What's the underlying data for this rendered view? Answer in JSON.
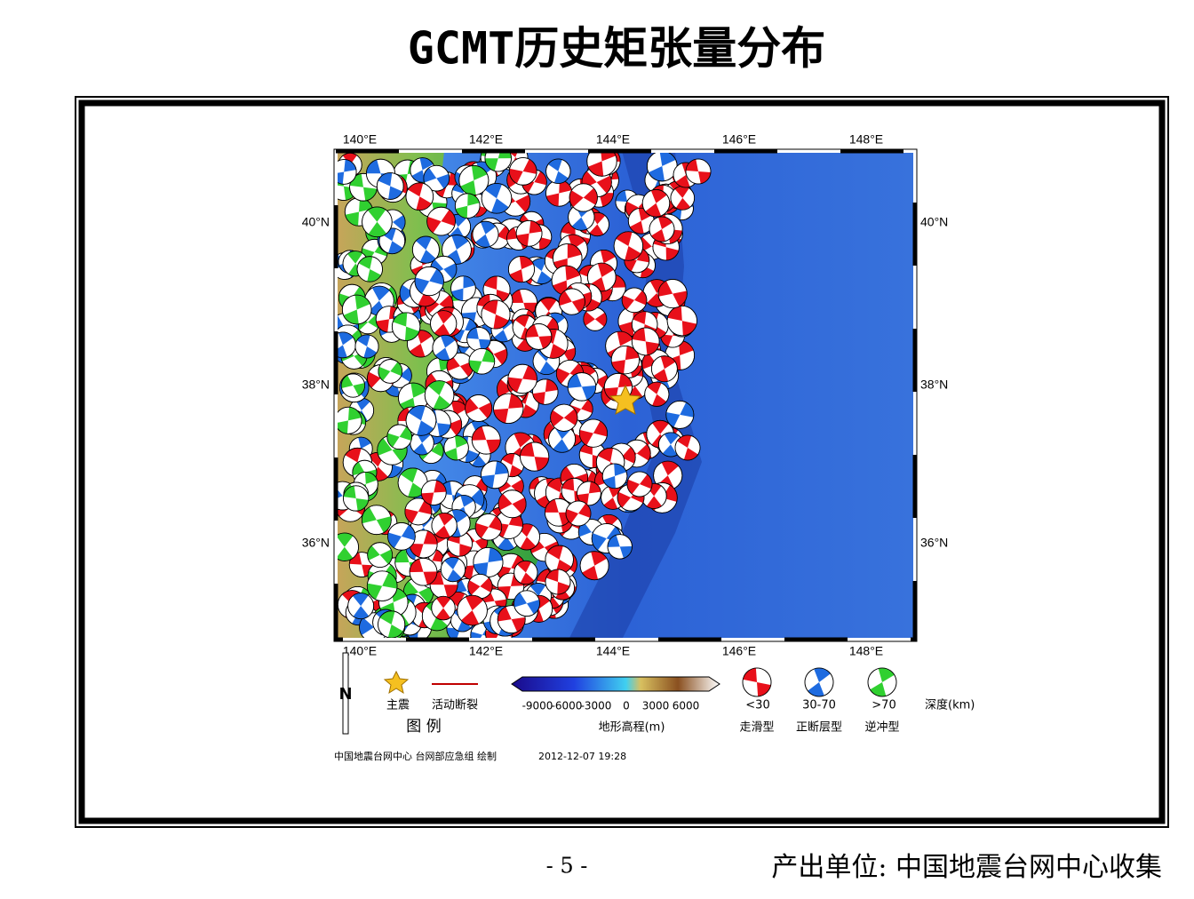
{
  "title": "GCMT历史矩张量分布",
  "map": {
    "lon_labels": [
      "140°E",
      "142°E",
      "144°E",
      "146°E",
      "148°E"
    ],
    "lat_labels": [
      "40°N",
      "38°N",
      "36°N"
    ]
  },
  "legend": {
    "heading": "图  例",
    "main_shock": "主震",
    "fault": "活动断裂",
    "north": "N",
    "colorbar_ticks": [
      "-9000",
      "-6000",
      "-3000",
      "0",
      "3000",
      "6000"
    ],
    "colorbar_title": "地形高程(m)",
    "depth_labels": [
      "<30",
      "30-70",
      ">70"
    ],
    "depth_unit": "深度(km)",
    "mechanisms": [
      "走滑型",
      "正断层型",
      "逆冲型"
    ]
  },
  "credit": "中国地震台网中心 台网部应急组 绘制",
  "timestamp": "2012-12-07 19:28",
  "footer": {
    "page": "- 5 -",
    "source": "产出单位: 中国地震台网中心收集"
  }
}
